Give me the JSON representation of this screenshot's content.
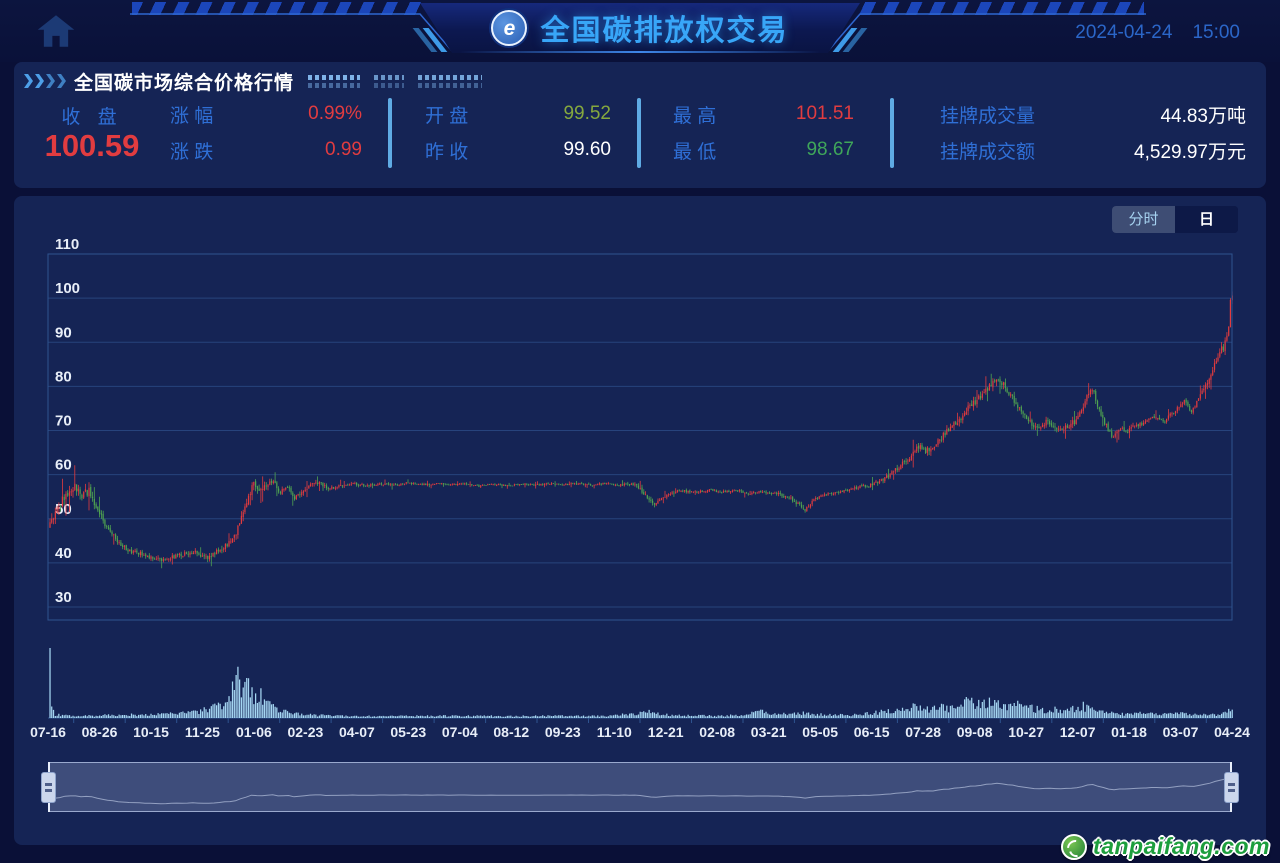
{
  "header": {
    "title": "全国碳排放权交易",
    "date": "2024-04-24",
    "time": "15:00"
  },
  "quote": {
    "panel_title": "全国碳市场综合价格行情",
    "main": {
      "label": "收 盘",
      "value": "100.59"
    },
    "fields": [
      {
        "label": "涨 幅",
        "value": "0.99%",
        "color": "#E13C40"
      },
      {
        "label": "涨 跌",
        "value": "0.99",
        "color": "#E13C40"
      },
      {
        "label": "开 盘",
        "value": "99.52",
        "color": "#85A83E"
      },
      {
        "label": "昨 收",
        "value": "99.60",
        "color": "#FFFFFF"
      },
      {
        "label": "最 高",
        "value": "101.51",
        "color": "#E13C40"
      },
      {
        "label": "最 低",
        "value": "98.67",
        "color": "#3FA65A"
      },
      {
        "label": "挂牌成交量",
        "value": "44.83万吨",
        "color": "#FFFFFF"
      },
      {
        "label": "挂牌成交额",
        "value": "4,529.97万元",
        "color": "#FFFFFF"
      }
    ]
  },
  "chart": {
    "tabs": [
      {
        "label": "分时",
        "active": false
      },
      {
        "label": "日",
        "active": true
      }
    ]
  },
  "chart_data": {
    "type": "candlestick",
    "x_axis_labels": [
      "07-16",
      "08-26",
      "10-15",
      "11-25",
      "01-06",
      "02-23",
      "04-07",
      "05-23",
      "07-04",
      "08-12",
      "09-23",
      "11-10",
      "12-21",
      "02-08",
      "03-21",
      "05-05",
      "06-15",
      "07-28",
      "09-08",
      "10-27",
      "12-07",
      "01-18",
      "03-07",
      "04-24"
    ],
    "y_axis_ticks": [
      110,
      100,
      90,
      80,
      70,
      60,
      50,
      40,
      30
    ],
    "ylim": [
      30,
      110
    ],
    "num_days": 668,
    "last_day": {
      "open": 99.52,
      "close": 100.59,
      "high": 101.51,
      "low": 98.67
    },
    "prev_close": 99.6,
    "price_anchors": [
      [
        0,
        49
      ],
      [
        3,
        51.5
      ],
      [
        6,
        53.5
      ],
      [
        10,
        56
      ],
      [
        14,
        57.5
      ],
      [
        18,
        55
      ],
      [
        22,
        56.5
      ],
      [
        26,
        53
      ],
      [
        30,
        49.5
      ],
      [
        34,
        47
      ],
      [
        40,
        44
      ],
      [
        46,
        42.5
      ],
      [
        52,
        42
      ],
      [
        58,
        41
      ],
      [
        64,
        40.5
      ],
      [
        70,
        41.5
      ],
      [
        76,
        42
      ],
      [
        82,
        42.5
      ],
      [
        88,
        41
      ],
      [
        94,
        42.5
      ],
      [
        100,
        44
      ],
      [
        104,
        46
      ],
      [
        108,
        50
      ],
      [
        112,
        55
      ],
      [
        115,
        58
      ],
      [
        118,
        56
      ],
      [
        122,
        57.5
      ],
      [
        126,
        58.5
      ],
      [
        130,
        56
      ],
      [
        134,
        57.5
      ],
      [
        138,
        54.5
      ],
      [
        142,
        56
      ],
      [
        146,
        57.5
      ],
      [
        152,
        58
      ],
      [
        158,
        56.8
      ],
      [
        164,
        57.6
      ],
      [
        170,
        58
      ],
      [
        178,
        57.5
      ],
      [
        186,
        58
      ],
      [
        194,
        57.6
      ],
      [
        202,
        58.1
      ],
      [
        210,
        57.7
      ],
      [
        218,
        58
      ],
      [
        226,
        57.6
      ],
      [
        234,
        58
      ],
      [
        242,
        57.4
      ],
      [
        250,
        57.9
      ],
      [
        258,
        57.5
      ],
      [
        266,
        57.9
      ],
      [
        274,
        57.6
      ],
      [
        282,
        58
      ],
      [
        290,
        57.7
      ],
      [
        298,
        58
      ],
      [
        306,
        57.7
      ],
      [
        314,
        58
      ],
      [
        322,
        57.6
      ],
      [
        330,
        57.9
      ],
      [
        336,
        55.5
      ],
      [
        340,
        53.2
      ],
      [
        344,
        54.5
      ],
      [
        350,
        55.8
      ],
      [
        356,
        56.4
      ],
      [
        364,
        56
      ],
      [
        372,
        56.5
      ],
      [
        380,
        56.1
      ],
      [
        388,
        56.4
      ],
      [
        394,
        55.6
      ],
      [
        400,
        56.2
      ],
      [
        408,
        55.8
      ],
      [
        414,
        55.2
      ],
      [
        420,
        54
      ],
      [
        426,
        52
      ],
      [
        430,
        54
      ],
      [
        436,
        55.5
      ],
      [
        444,
        56
      ],
      [
        450,
        56.5
      ],
      [
        456,
        57.2
      ],
      [
        462,
        57.6
      ],
      [
        468,
        58.5
      ],
      [
        474,
        60
      ],
      [
        480,
        62
      ],
      [
        486,
        64.5
      ],
      [
        490,
        66.5
      ],
      [
        494,
        65.5
      ],
      [
        498,
        66
      ],
      [
        502,
        68
      ],
      [
        506,
        70
      ],
      [
        510,
        71.5
      ],
      [
        514,
        73
      ],
      [
        518,
        75
      ],
      [
        522,
        76.5
      ],
      [
        526,
        78
      ],
      [
        530,
        80
      ],
      [
        534,
        81.5
      ],
      [
        538,
        80.5
      ],
      [
        542,
        78
      ],
      [
        546,
        75.5
      ],
      [
        550,
        73
      ],
      [
        554,
        71.5
      ],
      [
        558,
        70.5
      ],
      [
        562,
        72
      ],
      [
        566,
        71
      ],
      [
        570,
        70
      ],
      [
        574,
        71
      ],
      [
        578,
        72
      ],
      [
        582,
        74.5
      ],
      [
        585,
        78
      ],
      [
        588,
        79.5
      ],
      [
        591,
        76
      ],
      [
        594,
        72.5
      ],
      [
        597,
        70
      ],
      [
        600,
        68.5
      ],
      [
        604,
        70.5
      ],
      [
        608,
        70
      ],
      [
        612,
        71
      ],
      [
        616,
        71.5
      ],
      [
        620,
        72.5
      ],
      [
        624,
        73
      ],
      [
        628,
        72
      ],
      [
        632,
        73.5
      ],
      [
        636,
        75
      ],
      [
        640,
        76.5
      ],
      [
        644,
        74.5
      ],
      [
        648,
        77
      ],
      [
        652,
        80
      ],
      [
        655,
        83
      ],
      [
        658,
        86
      ],
      [
        660,
        88
      ],
      [
        661,
        89.5
      ],
      [
        662,
        88.5
      ],
      [
        663,
        90
      ],
      [
        664,
        91.5
      ],
      [
        665,
        94
      ],
      [
        666,
        99.6
      ],
      [
        667,
        100.59
      ]
    ],
    "amplitude_anchors": [
      [
        0,
        1.8
      ],
      [
        10,
        2.2
      ],
      [
        20,
        2.0
      ],
      [
        30,
        1.5
      ],
      [
        40,
        1.0
      ],
      [
        60,
        0.9
      ],
      [
        80,
        1.0
      ],
      [
        100,
        1.3
      ],
      [
        110,
        1.8
      ],
      [
        118,
        1.6
      ],
      [
        126,
        1.2
      ],
      [
        140,
        1.1
      ],
      [
        160,
        0.7
      ],
      [
        200,
        0.45
      ],
      [
        240,
        0.4
      ],
      [
        280,
        0.4
      ],
      [
        320,
        0.45
      ],
      [
        336,
        1.1
      ],
      [
        344,
        0.8
      ],
      [
        360,
        0.5
      ],
      [
        400,
        0.55
      ],
      [
        420,
        1.0
      ],
      [
        430,
        0.8
      ],
      [
        450,
        0.6
      ],
      [
        470,
        0.9
      ],
      [
        490,
        1.5
      ],
      [
        510,
        1.4
      ],
      [
        530,
        1.5
      ],
      [
        545,
        1.4
      ],
      [
        560,
        1.2
      ],
      [
        580,
        1.3
      ],
      [
        595,
        1.4
      ],
      [
        610,
        0.9
      ],
      [
        625,
        0.9
      ],
      [
        640,
        1.1
      ],
      [
        652,
        1.3
      ],
      [
        660,
        1.5
      ],
      [
        667,
        1.6
      ]
    ],
    "volume_anchors": [
      [
        0,
        1.0
      ],
      [
        1,
        0.12
      ],
      [
        3,
        0.05
      ],
      [
        10,
        0.035
      ],
      [
        20,
        0.03
      ],
      [
        40,
        0.045
      ],
      [
        60,
        0.05
      ],
      [
        75,
        0.07
      ],
      [
        85,
        0.1
      ],
      [
        92,
        0.14
      ],
      [
        98,
        0.22
      ],
      [
        102,
        0.3
      ],
      [
        105,
        0.55
      ],
      [
        107,
        0.62
      ],
      [
        109,
        0.4
      ],
      [
        112,
        0.46
      ],
      [
        115,
        0.3
      ],
      [
        118,
        0.36
      ],
      [
        121,
        0.24
      ],
      [
        126,
        0.17
      ],
      [
        132,
        0.1
      ],
      [
        140,
        0.055
      ],
      [
        150,
        0.04
      ],
      [
        165,
        0.03
      ],
      [
        185,
        0.025
      ],
      [
        210,
        0.028
      ],
      [
        235,
        0.032
      ],
      [
        260,
        0.025
      ],
      [
        285,
        0.03
      ],
      [
        310,
        0.028
      ],
      [
        330,
        0.06
      ],
      [
        338,
        0.09
      ],
      [
        346,
        0.05
      ],
      [
        360,
        0.035
      ],
      [
        380,
        0.03
      ],
      [
        395,
        0.06
      ],
      [
        402,
        0.09
      ],
      [
        410,
        0.05
      ],
      [
        425,
        0.07
      ],
      [
        435,
        0.05
      ],
      [
        450,
        0.04
      ],
      [
        460,
        0.06
      ],
      [
        470,
        0.09
      ],
      [
        480,
        0.11
      ],
      [
        488,
        0.16
      ],
      [
        495,
        0.13
      ],
      [
        502,
        0.17
      ],
      [
        508,
        0.14
      ],
      [
        514,
        0.2
      ],
      [
        518,
        0.26
      ],
      [
        523,
        0.19
      ],
      [
        528,
        0.23
      ],
      [
        533,
        0.2
      ],
      [
        538,
        0.16
      ],
      [
        543,
        0.22
      ],
      [
        548,
        0.19
      ],
      [
        553,
        0.15
      ],
      [
        558,
        0.12
      ],
      [
        563,
        0.1
      ],
      [
        568,
        0.13
      ],
      [
        573,
        0.1
      ],
      [
        578,
        0.14
      ],
      [
        583,
        0.17
      ],
      [
        588,
        0.12
      ],
      [
        593,
        0.09
      ],
      [
        598,
        0.07
      ],
      [
        604,
        0.06
      ],
      [
        610,
        0.05
      ],
      [
        616,
        0.07
      ],
      [
        622,
        0.06
      ],
      [
        628,
        0.05
      ],
      [
        634,
        0.08
      ],
      [
        640,
        0.06
      ],
      [
        646,
        0.05
      ],
      [
        652,
        0.045
      ],
      [
        658,
        0.05
      ],
      [
        662,
        0.07
      ],
      [
        667,
        0.11
      ]
    ],
    "colors": {
      "up": "#E23B3E",
      "down": "#4FA350",
      "volume": "#A5D6F2",
      "grid": "#27437C",
      "border": "#2E538F",
      "axis_label": "#E8EEF8"
    }
  },
  "watermark": {
    "text": "tanpaifang.com"
  },
  "colors": {
    "page_bg": "#0A1037",
    "panel_bg": "#152455",
    "title_blue": "#38A6F8",
    "label_blue": "#2F6FD6",
    "divider_blue": "#5FABE4",
    "date_blue": "#2B66C8"
  }
}
